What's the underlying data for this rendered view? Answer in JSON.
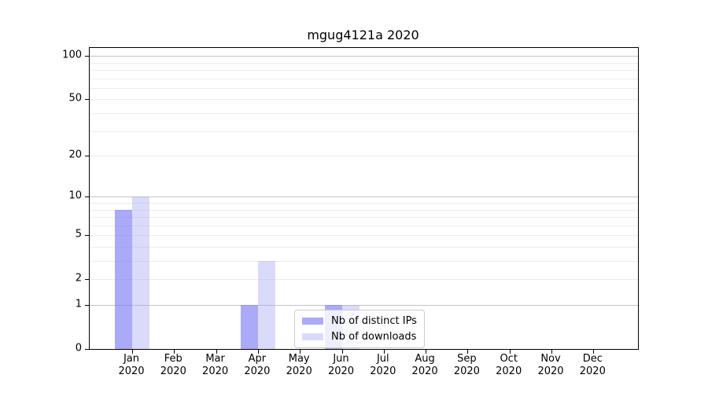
{
  "chart_data": {
    "type": "bar",
    "title": "mgug4121a 2020",
    "categories": [
      "Jan",
      "Feb",
      "Mar",
      "Apr",
      "May",
      "Jun",
      "Jul",
      "Aug",
      "Sep",
      "Oct",
      "Nov",
      "Dec"
    ],
    "category_year": "2020",
    "series": [
      {
        "name": "Nb of distinct IPs",
        "color": "rgba(125,125,245,0.65)",
        "values": [
          8,
          0,
          0,
          1,
          0,
          1,
          0,
          0,
          0,
          0,
          0,
          0
        ]
      },
      {
        "name": "Nb of downloads",
        "color": "rgba(160,160,243,0.39)",
        "values": [
          10,
          0,
          0,
          3,
          0,
          1,
          0,
          0,
          0,
          0,
          0,
          0
        ]
      }
    ],
    "xlabel": "",
    "ylabel": "",
    "y_scale": "log10(1+value)",
    "y_ticks": [
      0,
      1,
      2,
      5,
      10,
      20,
      50,
      100
    ],
    "y_major_gridlines": [
      1,
      10,
      100
    ],
    "y_minor_gridlines": [
      2,
      3,
      4,
      5,
      6,
      7,
      8,
      9,
      20,
      30,
      40,
      50,
      60,
      70,
      80,
      90
    ],
    "ylim": [
      0,
      114
    ],
    "grid": true,
    "legend_position": "lower-center-inside"
  },
  "colors": {
    "grid_major": "#c4c4c4",
    "grid_minor": "#ececec",
    "spine": "#000000",
    "text": "#000000",
    "legend_border": "#cccccc",
    "legend_background": "rgba(255,255,255,0.8)"
  }
}
